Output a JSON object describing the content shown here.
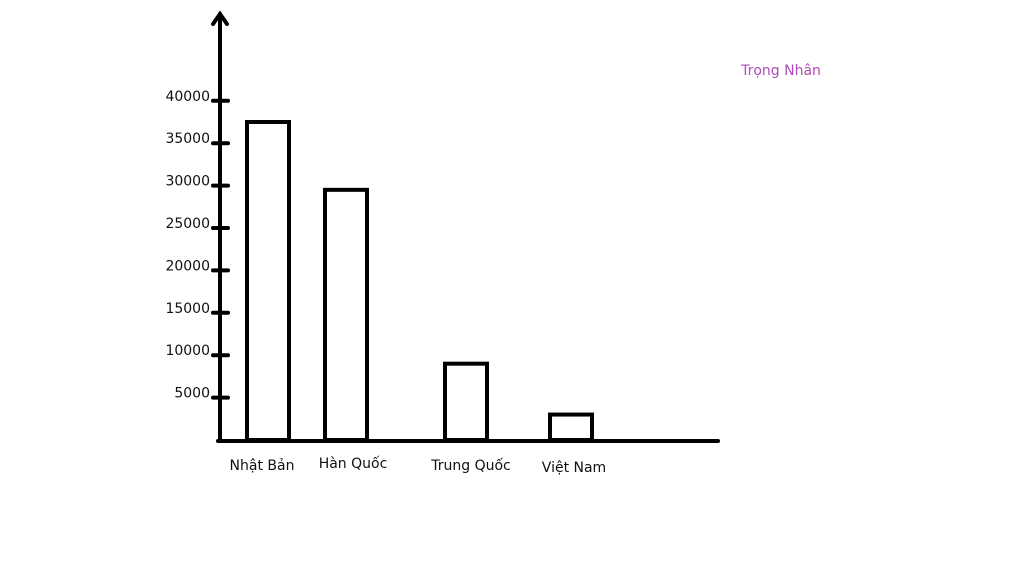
{
  "chart_data": {
    "type": "bar",
    "annotation": "Trọng Nhân",
    "categories": [
      "Nhật Bản",
      "Hàn Quốc",
      "Trung Quốc",
      "Việt Nam"
    ],
    "values": [
      37500,
      29500,
      9000,
      3000
    ],
    "color": "#ffffff",
    "ylim": [
      0,
      50000
    ],
    "yticks": [
      5000,
      10000,
      15000,
      20000,
      25000,
      30000,
      35000,
      40000
    ],
    "grid": false
  }
}
